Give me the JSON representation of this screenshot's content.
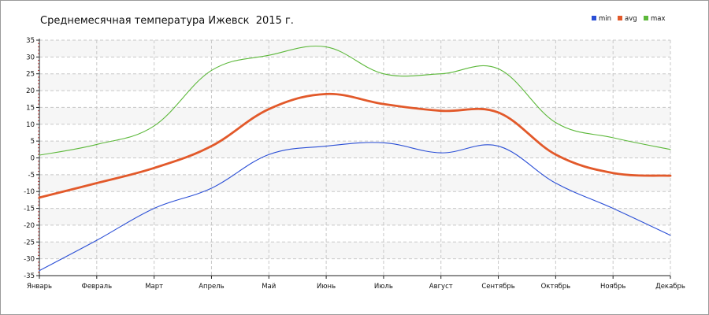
{
  "chart_data": {
    "type": "line",
    "title": "Среднемесячная температура Ижевск  2015 г.",
    "categories": [
      "Январь",
      "Февраль",
      "Март",
      "Апрель",
      "Май",
      "Июнь",
      "Июль",
      "Август",
      "Сентябрь",
      "Октябрь",
      "Ноябрь",
      "Декабрь"
    ],
    "ylim": [
      -35,
      35
    ],
    "yticks": [
      -35,
      -30,
      -25,
      -20,
      -15,
      -10,
      -5,
      0,
      5,
      10,
      15,
      20,
      25,
      30,
      35
    ],
    "grid": true,
    "legend_placement": "top-right",
    "series": [
      {
        "name": "min",
        "color": "#2b4fd6",
        "values": [
          -33.5,
          -24.5,
          -15.0,
          -9.0,
          1.0,
          3.5,
          4.5,
          1.5,
          3.5,
          -7.5,
          -15.0,
          -23.0
        ]
      },
      {
        "name": "avg",
        "color": "#e2592a",
        "values": [
          -11.8,
          -7.5,
          -3.0,
          3.5,
          14.5,
          19.0,
          16.0,
          14.0,
          13.5,
          1.0,
          -4.5,
          -5.3
        ]
      },
      {
        "name": "max",
        "color": "#5cb83a",
        "values": [
          0.8,
          4.0,
          9.5,
          26.0,
          30.5,
          33.0,
          25.0,
          25.0,
          26.5,
          10.5,
          6.0,
          2.5
        ]
      }
    ]
  }
}
